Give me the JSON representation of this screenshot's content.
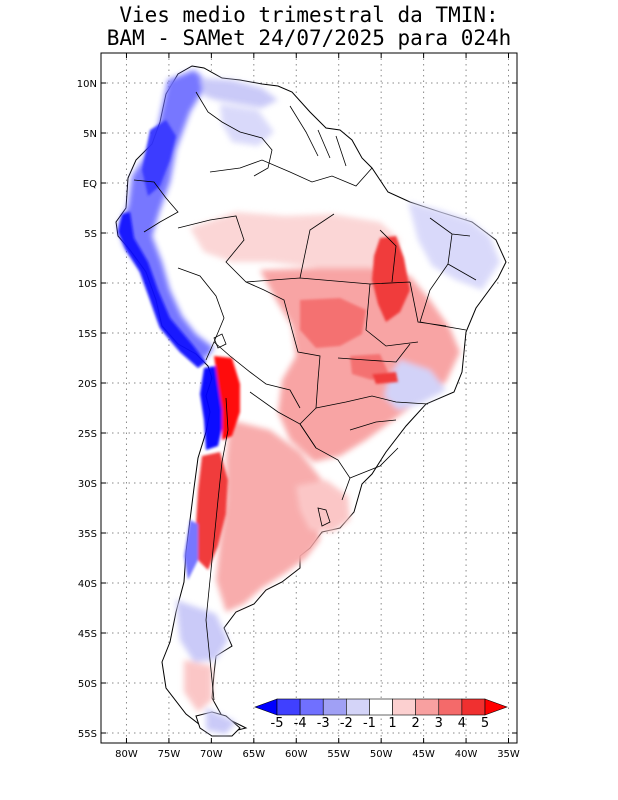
{
  "title": {
    "line1": "Vies medio trimestral da TMIN:",
    "line2": "BAM - SAMet 24/07/2025  para 024h"
  },
  "map": {
    "lon_min": -83,
    "lon_max": -34,
    "lat_min": -56,
    "lat_max": 13,
    "lon_ticks": [
      {
        "value": -80,
        "label": "80W"
      },
      {
        "value": -75,
        "label": "75W"
      },
      {
        "value": -70,
        "label": "70W"
      },
      {
        "value": -65,
        "label": "65W"
      },
      {
        "value": -60,
        "label": "60W"
      },
      {
        "value": -55,
        "label": "55W"
      },
      {
        "value": -50,
        "label": "50W"
      },
      {
        "value": -45,
        "label": "45W"
      },
      {
        "value": -40,
        "label": "40W"
      },
      {
        "value": -35,
        "label": "35W"
      }
    ],
    "lat_ticks": [
      {
        "value": 10,
        "label": "10N"
      },
      {
        "value": 5,
        "label": "5N"
      },
      {
        "value": 0,
        "label": "EQ"
      },
      {
        "value": -5,
        "label": "5S"
      },
      {
        "value": -10,
        "label": "10S"
      },
      {
        "value": -15,
        "label": "15S"
      },
      {
        "value": -20,
        "label": "20S"
      },
      {
        "value": -25,
        "label": "25S"
      },
      {
        "value": -30,
        "label": "30S"
      },
      {
        "value": -35,
        "label": "35S"
      },
      {
        "value": -40,
        "label": "40S"
      },
      {
        "value": -45,
        "label": "45S"
      },
      {
        "value": -50,
        "label": "50S"
      },
      {
        "value": -55,
        "label": "55S"
      }
    ],
    "gridlines": "dotted"
  },
  "colorbar": {
    "labels": [
      "-5",
      "-4",
      "-3",
      "-2",
      "-1",
      "1",
      "2",
      "3",
      "4",
      "5"
    ],
    "colors": [
      "#0a0aff",
      "#4040ff",
      "#7070ff",
      "#a0a0f5",
      "#d4d4f8",
      "#ffffff",
      "#fcd0d0",
      "#f8a0a0",
      "#f46a6a",
      "#f03030",
      "#ff0000"
    ],
    "low_arrow_color": "#0000ff",
    "high_arrow_color": "#ff0000"
  },
  "colors": {
    "strong_blue": "#0000ff",
    "strong_red": "#ff0000"
  }
}
